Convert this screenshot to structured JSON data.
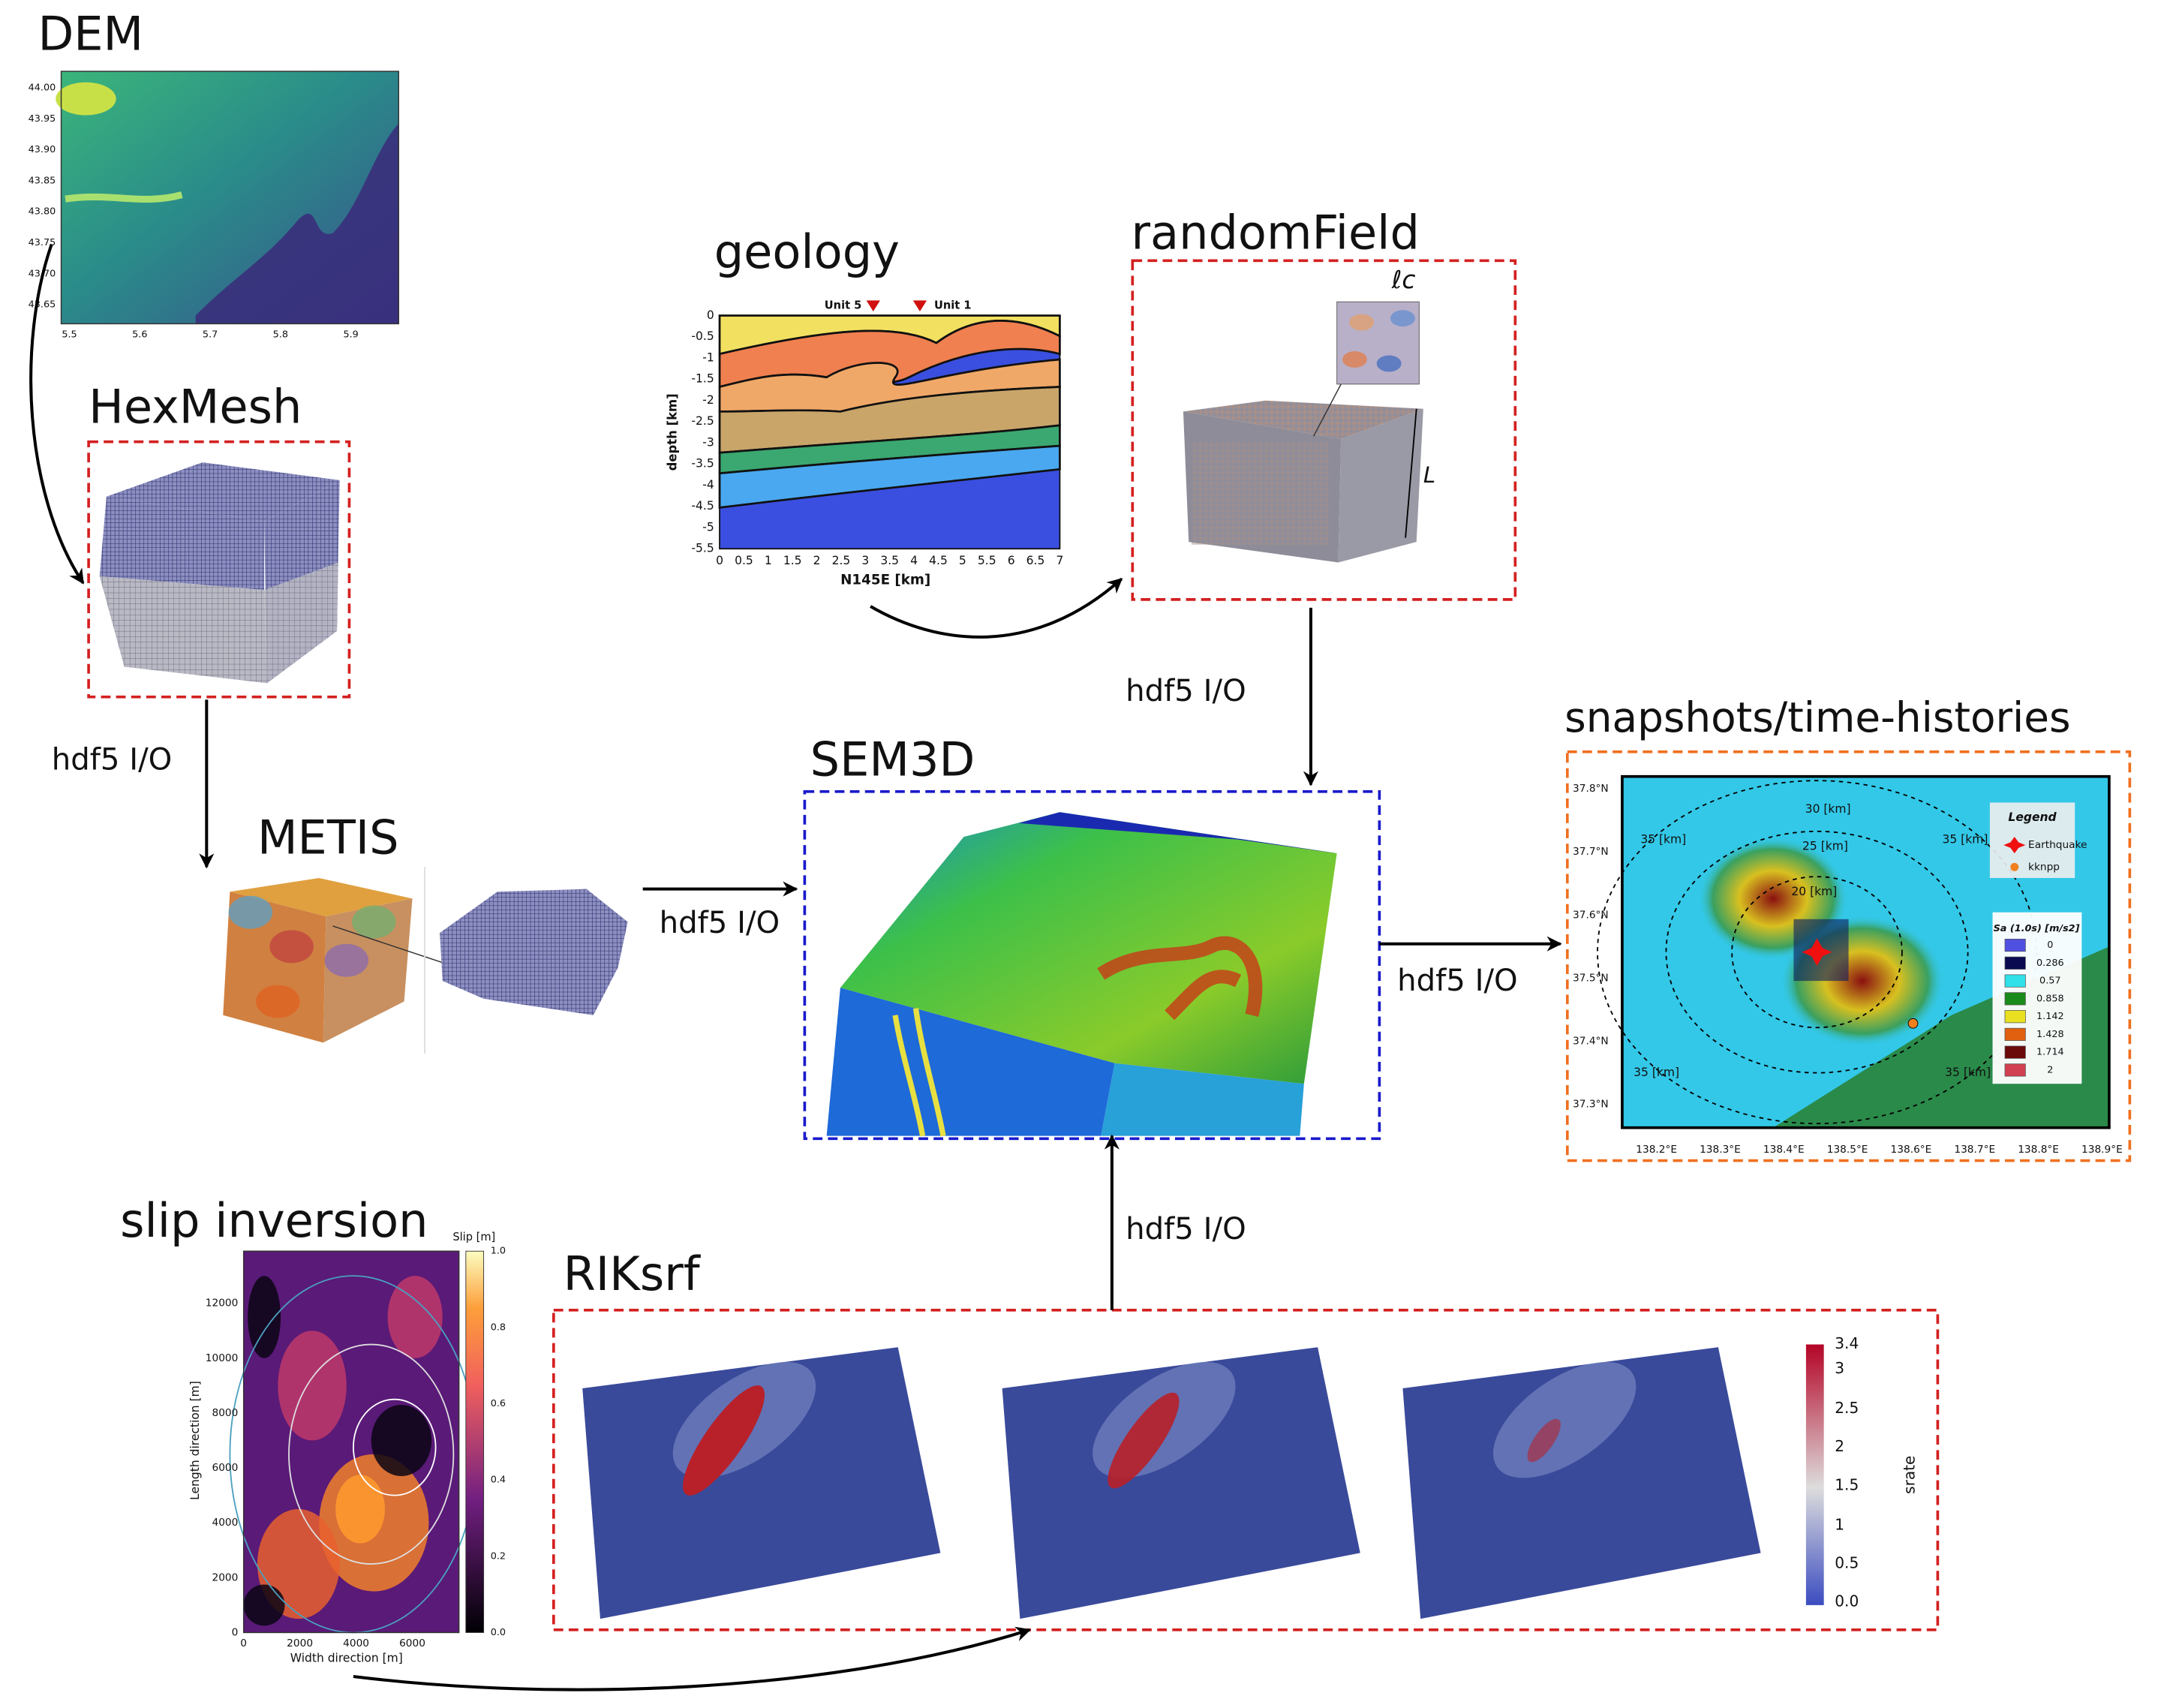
{
  "nodes": [
    {
      "label": "DEM"
    },
    {
      "label": "HexMesh"
    },
    {
      "label": "METIS"
    },
    {
      "label": "geology"
    },
    {
      "label": "randomField"
    },
    {
      "label": "SEM3D"
    },
    {
      "label": "snapshots/time-histories"
    },
    {
      "label": "slip inversion"
    },
    {
      "label": "RIKsrf"
    }
  ],
  "edges": [
    {
      "label": "hdf5 I/O"
    },
    {
      "label": "hdf5 I/O"
    },
    {
      "label": "hdf5 I/O"
    },
    {
      "label": "hdf5 I/O"
    },
    {
      "label": "hdf5 I/O"
    }
  ],
  "dem": {
    "yticks": [
      "44.00",
      "43.95",
      "43.90",
      "43.85",
      "43.80",
      "43.75",
      "43.70",
      "43.65"
    ],
    "xticks": [
      "5.5",
      "5.6",
      "5.7",
      "5.8",
      "5.9"
    ]
  },
  "geology": {
    "markers": [
      "Unit 5",
      "Unit 1"
    ],
    "ylabel": "depth [km]",
    "xlabel": "N145E [km]",
    "yticks": [
      "0",
      "-0.5",
      "-1",
      "-1.5",
      "-2",
      "-2.5",
      "-3",
      "-3.5",
      "-4",
      "-4.5",
      "-5",
      "-5.5"
    ],
    "xticks": [
      "0",
      "0.5",
      "1",
      "1.5",
      "2",
      "2.5",
      "3",
      "3.5",
      "4",
      "4.5",
      "5",
      "5.5",
      "6",
      "6.5",
      "7"
    ]
  },
  "random_field": {
    "labels": [
      "ℓc",
      "L"
    ]
  },
  "snapshots": {
    "legend_title": "Legend",
    "legend_items": [
      "Earthquake",
      "kknpp"
    ],
    "colorbar_title": "Sa (1.0s) [m/s2]",
    "colorbar_values": [
      "0",
      "0.286",
      "0.57",
      "0.858",
      "1.142",
      "1.428",
      "1.714",
      "2"
    ],
    "contours": [
      "30 [km]",
      "25 [km]",
      "20 [km]",
      "35 [km]",
      "35 [km]",
      "35 [km]",
      "35 [km]"
    ],
    "yticks": [
      "37.8°N",
      "37.7°N",
      "37.6°N",
      "37.5°N",
      "37.4°N",
      "37.3°N"
    ],
    "xticks": [
      "138.2°E",
      "138.3°E",
      "138.4°E",
      "138.5°E",
      "138.6°E",
      "138.7°E",
      "138.8°E",
      "138.9°E"
    ]
  },
  "slip": {
    "colorbar_title": "Slip [m]",
    "colorbar_ticks": [
      "1.0",
      "0.8",
      "0.6",
      "0.4",
      "0.2",
      "0.0"
    ],
    "ylabel": "Length direction [m]",
    "xlabel": "Width direction [m]",
    "yticks": [
      "0",
      "2000",
      "4000",
      "6000",
      "8000",
      "10000",
      "12000"
    ],
    "xticks": [
      "0",
      "2000",
      "4000",
      "6000"
    ]
  },
  "riksrf": {
    "colorbar_title": "srate",
    "colorbar_ticks": [
      "3.4",
      "3",
      "2.5",
      "2",
      "1.5",
      "1",
      "0.5",
      "0.0"
    ]
  }
}
